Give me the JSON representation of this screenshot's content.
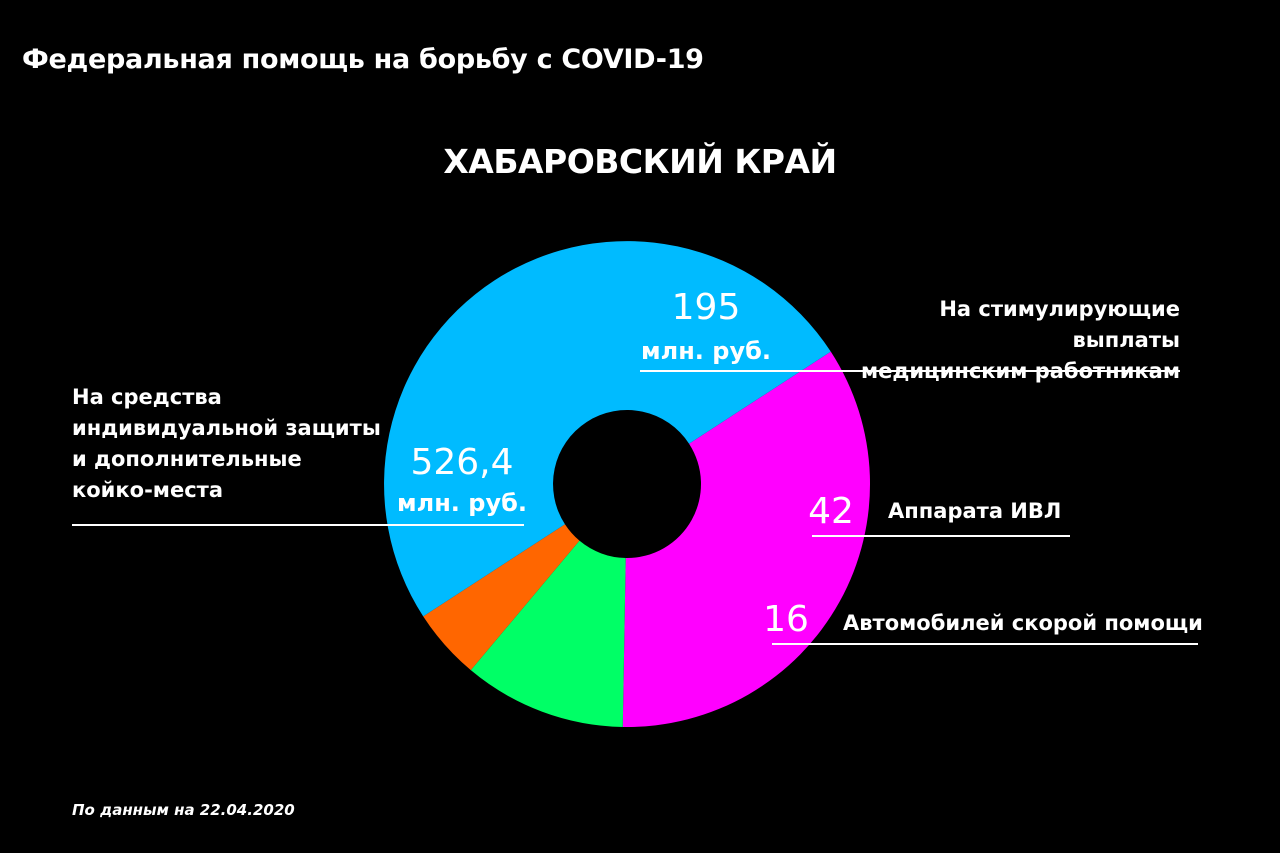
{
  "title": "Федеральная помощь на борьбу с COVID-19",
  "subtitle": "ХАБАРОВСКИЙ КРАЙ",
  "footnote": "По данным на 22.04.2020",
  "colors": {
    "background": "#000000",
    "magenta": "#ff00ff",
    "cyan": "#00bbff",
    "green": "#00ff66",
    "orange": "#ff6600",
    "text": "#ffffff"
  },
  "chart_data": {
    "type": "pie",
    "title": "ХАБАРОВСКИЙ КРАЙ",
    "donut": true,
    "slices": [
      {
        "key": "stimulus",
        "value_text": "195",
        "unit": "млн. руб.",
        "label_lines": [
          "На стимулирующие выплаты",
          "медицинским работникам"
        ],
        "color": "#ff00ff",
        "angle_start_deg": -33,
        "angle_end_deg": 91
      },
      {
        "key": "ventilators",
        "value_text": "42",
        "unit": "",
        "label_lines": [
          "Аппарата ИВЛ"
        ],
        "color": "#00ff66",
        "angle_start_deg": 91,
        "angle_end_deg": 130
      },
      {
        "key": "ambulances",
        "value_text": "16",
        "unit": "",
        "label_lines": [
          "Автомобилей скорой помощи"
        ],
        "color": "#ff6600",
        "angle_start_deg": 130,
        "angle_end_deg": 147
      },
      {
        "key": "ppe",
        "value_text": "526,4",
        "unit": "млн. руб.",
        "label_lines": [
          "На средства",
          "индивидуальной защиты",
          "и дополнительные",
          "койко-места"
        ],
        "color": "#00bbff",
        "angle_start_deg": 147,
        "angle_end_deg": 327
      }
    ]
  }
}
